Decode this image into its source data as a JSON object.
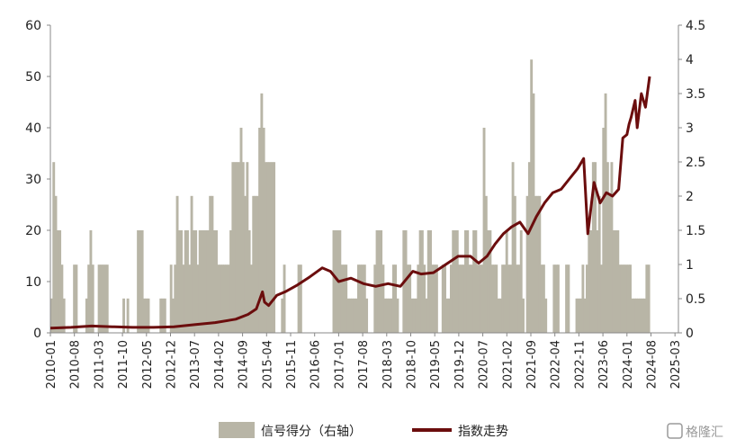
{
  "chart_data": {
    "type": "bar+line",
    "title": "",
    "left_axis": {
      "ylim": [
        0,
        60
      ],
      "ticks": [
        "0",
        "10",
        "20",
        "30",
        "40",
        "50",
        "60"
      ]
    },
    "right_axis": {
      "ylim": [
        0,
        4.5
      ],
      "ticks": [
        "0",
        "0.5",
        "1",
        "1.5",
        "2",
        "2.5",
        "3",
        "3.5",
        "4",
        "4.5"
      ]
    },
    "x_tick_labels": [
      "2010-01",
      "2010-08",
      "2011-03",
      "2011-10",
      "2012-05",
      "2012-12",
      "2013-07",
      "2014-02",
      "2014-09",
      "2015-04",
      "2015-11",
      "2016-06",
      "2017-01",
      "2017-08",
      "2018-03",
      "2018-10",
      "2019-05",
      "2019-12",
      "2020-07",
      "2021-02",
      "2021-09",
      "2022-04",
      "2022-11",
      "2023-06",
      "2024-01",
      "2024-08",
      "2025-03"
    ],
    "legend_position": "bottom",
    "series": [
      {
        "name": "信号得分（右轴）",
        "kind": "bar",
        "color": "#b8b5a6",
        "points": [
          [
            2010.0,
            6.7
          ],
          [
            2010.05,
            33.3
          ],
          [
            2010.1,
            26.7
          ],
          [
            2010.15,
            20
          ],
          [
            2010.2,
            20
          ],
          [
            2010.25,
            13.3
          ],
          [
            2010.3,
            6.7
          ],
          [
            2010.35,
            0
          ],
          [
            2010.55,
            13.3
          ],
          [
            2010.6,
            13.3
          ],
          [
            2010.7,
            0
          ],
          [
            2010.85,
            6.7
          ],
          [
            2010.9,
            13.3
          ],
          [
            2010.95,
            20
          ],
          [
            2011.0,
            13.3
          ],
          [
            2011.05,
            0
          ],
          [
            2011.15,
            13.3
          ],
          [
            2011.2,
            13.3
          ],
          [
            2011.25,
            13.3
          ],
          [
            2011.3,
            13.3
          ],
          [
            2011.35,
            13.3
          ],
          [
            2011.45,
            0
          ],
          [
            2011.6,
            0
          ],
          [
            2011.75,
            6.7
          ],
          [
            2011.85,
            6.7
          ],
          [
            2012.1,
            20
          ],
          [
            2012.15,
            20
          ],
          [
            2012.2,
            20
          ],
          [
            2012.25,
            6.7
          ],
          [
            2012.3,
            6.7
          ],
          [
            2012.35,
            6.7
          ],
          [
            2012.45,
            0
          ],
          [
            2012.65,
            6.7
          ],
          [
            2012.7,
            6.7
          ],
          [
            2012.75,
            6.7
          ],
          [
            2012.8,
            0
          ],
          [
            2012.9,
            13.3
          ],
          [
            2012.95,
            6.7
          ],
          [
            2013.0,
            13.3
          ],
          [
            2013.05,
            26.7
          ],
          [
            2013.1,
            20
          ],
          [
            2013.15,
            20
          ],
          [
            2013.2,
            13.3
          ],
          [
            2013.25,
            20
          ],
          [
            2013.3,
            20
          ],
          [
            2013.35,
            13.3
          ],
          [
            2013.4,
            26.7
          ],
          [
            2013.45,
            20
          ],
          [
            2013.5,
            20
          ],
          [
            2013.55,
            13.3
          ],
          [
            2013.6,
            20
          ],
          [
            2013.65,
            20
          ],
          [
            2013.7,
            20
          ],
          [
            2013.75,
            20
          ],
          [
            2013.8,
            20
          ],
          [
            2013.85,
            26.7
          ],
          [
            2013.9,
            26.7
          ],
          [
            2013.95,
            20
          ],
          [
            2014.0,
            20
          ],
          [
            2014.05,
            13.3
          ],
          [
            2014.1,
            13.3
          ],
          [
            2014.15,
            13.3
          ],
          [
            2014.2,
            13.3
          ],
          [
            2014.25,
            13.3
          ],
          [
            2014.3,
            13.3
          ],
          [
            2014.35,
            20
          ],
          [
            2014.4,
            33.3
          ],
          [
            2014.45,
            33.3
          ],
          [
            2014.5,
            33.3
          ],
          [
            2014.55,
            33.3
          ],
          [
            2014.6,
            40
          ],
          [
            2014.65,
            33.3
          ],
          [
            2014.7,
            26.7
          ],
          [
            2014.75,
            33.3
          ],
          [
            2014.8,
            20
          ],
          [
            2014.85,
            13.3
          ],
          [
            2014.9,
            26.7
          ],
          [
            2014.95,
            26.7
          ],
          [
            2015.0,
            26.7
          ],
          [
            2015.05,
            40
          ],
          [
            2015.1,
            46.7
          ],
          [
            2015.15,
            40
          ],
          [
            2015.2,
            33.3
          ],
          [
            2015.25,
            33.3
          ],
          [
            2015.3,
            33.3
          ],
          [
            2015.35,
            33.3
          ],
          [
            2015.4,
            33.3
          ],
          [
            2015.45,
            0
          ],
          [
            2015.6,
            6.7
          ],
          [
            2015.65,
            13.3
          ],
          [
            2015.7,
            0
          ],
          [
            2016.0,
            13.3
          ],
          [
            2016.05,
            13.3
          ],
          [
            2016.1,
            0
          ],
          [
            2016.85,
            20
          ],
          [
            2016.9,
            20
          ],
          [
            2016.95,
            20
          ],
          [
            2017.0,
            20
          ],
          [
            2017.05,
            13.3
          ],
          [
            2017.1,
            13.3
          ],
          [
            2017.15,
            13.3
          ],
          [
            2017.2,
            6.7
          ],
          [
            2017.25,
            6.7
          ],
          [
            2017.3,
            6.7
          ],
          [
            2017.35,
            6.7
          ],
          [
            2017.4,
            6.7
          ],
          [
            2017.45,
            13.3
          ],
          [
            2017.5,
            13.3
          ],
          [
            2017.55,
            13.3
          ],
          [
            2017.6,
            13.3
          ],
          [
            2017.65,
            6.7
          ],
          [
            2017.7,
            0
          ],
          [
            2017.85,
            13.3
          ],
          [
            2017.9,
            20
          ],
          [
            2017.95,
            20
          ],
          [
            2018.0,
            20
          ],
          [
            2018.05,
            13.3
          ],
          [
            2018.1,
            6.7
          ],
          [
            2018.15,
            6.7
          ],
          [
            2018.2,
            6.7
          ],
          [
            2018.25,
            6.7
          ],
          [
            2018.3,
            13.3
          ],
          [
            2018.35,
            13.3
          ],
          [
            2018.4,
            6.7
          ],
          [
            2018.45,
            0
          ],
          [
            2018.55,
            20
          ],
          [
            2018.6,
            20
          ],
          [
            2018.65,
            13.3
          ],
          [
            2018.7,
            13.3
          ],
          [
            2018.75,
            6.7
          ],
          [
            2018.8,
            6.7
          ],
          [
            2018.85,
            6.7
          ],
          [
            2018.9,
            13.3
          ],
          [
            2018.95,
            20
          ],
          [
            2019.0,
            20
          ],
          [
            2019.05,
            13.3
          ],
          [
            2019.1,
            6.7
          ],
          [
            2019.15,
            20
          ],
          [
            2019.2,
            20
          ],
          [
            2019.25,
            13.3
          ],
          [
            2019.3,
            13.3
          ],
          [
            2019.35,
            13.3
          ],
          [
            2019.4,
            0
          ],
          [
            2019.5,
            13.3
          ],
          [
            2019.55,
            13.3
          ],
          [
            2019.6,
            6.7
          ],
          [
            2019.65,
            6.7
          ],
          [
            2019.7,
            13.3
          ],
          [
            2019.75,
            20
          ],
          [
            2019.8,
            20
          ],
          [
            2019.85,
            20
          ],
          [
            2019.9,
            13.3
          ],
          [
            2019.95,
            13.3
          ],
          [
            2020.0,
            13.3
          ],
          [
            2020.05,
            20
          ],
          [
            2020.1,
            20
          ],
          [
            2020.15,
            13.3
          ],
          [
            2020.2,
            13.3
          ],
          [
            2020.25,
            20
          ],
          [
            2020.3,
            20
          ],
          [
            2020.35,
            13.3
          ],
          [
            2020.4,
            13.3
          ],
          [
            2020.45,
            13.3
          ],
          [
            2020.5,
            40
          ],
          [
            2020.55,
            26.7
          ],
          [
            2020.6,
            20
          ],
          [
            2020.65,
            20
          ],
          [
            2020.7,
            13.3
          ],
          [
            2020.75,
            13.3
          ],
          [
            2020.8,
            13.3
          ],
          [
            2020.85,
            6.7
          ],
          [
            2020.9,
            6.7
          ],
          [
            2020.95,
            13.3
          ],
          [
            2021.0,
            13.3
          ],
          [
            2021.05,
            20
          ],
          [
            2021.1,
            13.3
          ],
          [
            2021.15,
            13.3
          ],
          [
            2021.2,
            33.3
          ],
          [
            2021.25,
            26.7
          ],
          [
            2021.3,
            13.3
          ],
          [
            2021.35,
            13.3
          ],
          [
            2021.4,
            20
          ],
          [
            2021.45,
            6.7
          ],
          [
            2021.5,
            0
          ],
          [
            2021.55,
            26.7
          ],
          [
            2021.6,
            33.3
          ],
          [
            2021.65,
            53.3
          ],
          [
            2021.7,
            46.7
          ],
          [
            2021.75,
            26.7
          ],
          [
            2021.8,
            26.7
          ],
          [
            2021.85,
            26.7
          ],
          [
            2021.9,
            13.3
          ],
          [
            2021.95,
            13.3
          ],
          [
            2022.0,
            6.7
          ],
          [
            2022.05,
            0
          ],
          [
            2022.2,
            13.3
          ],
          [
            2022.25,
            13.3
          ],
          [
            2022.3,
            13.3
          ],
          [
            2022.35,
            0
          ],
          [
            2022.5,
            13.3
          ],
          [
            2022.55,
            13.3
          ],
          [
            2022.6,
            0
          ],
          [
            2022.75,
            6.7
          ],
          [
            2022.8,
            6.7
          ],
          [
            2022.85,
            6.7
          ],
          [
            2022.9,
            13.3
          ],
          [
            2022.95,
            6.7
          ],
          [
            2023.0,
            13.3
          ],
          [
            2023.05,
            20
          ],
          [
            2023.1,
            20
          ],
          [
            2023.15,
            33.3
          ],
          [
            2023.2,
            33.3
          ],
          [
            2023.25,
            20
          ],
          [
            2023.3,
            26.7
          ],
          [
            2023.35,
            13.3
          ],
          [
            2023.4,
            40
          ],
          [
            2023.45,
            46.7
          ],
          [
            2023.5,
            33.3
          ],
          [
            2023.55,
            26.7
          ],
          [
            2023.6,
            33.3
          ],
          [
            2023.65,
            20
          ],
          [
            2023.7,
            20
          ],
          [
            2023.75,
            20
          ],
          [
            2023.8,
            13.3
          ],
          [
            2023.85,
            13.3
          ],
          [
            2023.9,
            13.3
          ],
          [
            2023.95,
            13.3
          ],
          [
            2024.0,
            13.3
          ],
          [
            2024.05,
            13.3
          ],
          [
            2024.1,
            6.7
          ],
          [
            2024.15,
            6.7
          ],
          [
            2024.2,
            6.7
          ],
          [
            2024.25,
            6.7
          ],
          [
            2024.3,
            6.7
          ],
          [
            2024.35,
            6.7
          ],
          [
            2024.4,
            6.7
          ],
          [
            2024.45,
            13.3
          ],
          [
            2024.5,
            13.3
          ]
        ]
      },
      {
        "name": "指数走势",
        "kind": "line",
        "color": "#6b0d0d",
        "points": [
          [
            2010.0,
            0.07
          ],
          [
            2010.5,
            0.08
          ],
          [
            2011.0,
            0.1
          ],
          [
            2011.5,
            0.09
          ],
          [
            2012.0,
            0.08
          ],
          [
            2012.5,
            0.08
          ],
          [
            2013.0,
            0.09
          ],
          [
            2013.5,
            0.12
          ],
          [
            2014.0,
            0.15
          ],
          [
            2014.5,
            0.2
          ],
          [
            2014.8,
            0.27
          ],
          [
            2015.0,
            0.35
          ],
          [
            2015.15,
            0.6
          ],
          [
            2015.2,
            0.45
          ],
          [
            2015.3,
            0.4
          ],
          [
            2015.5,
            0.55
          ],
          [
            2015.7,
            0.6
          ],
          [
            2016.0,
            0.7
          ],
          [
            2016.3,
            0.82
          ],
          [
            2016.6,
            0.95
          ],
          [
            2016.8,
            0.9
          ],
          [
            2017.0,
            0.75
          ],
          [
            2017.3,
            0.8
          ],
          [
            2017.6,
            0.72
          ],
          [
            2017.9,
            0.68
          ],
          [
            2018.2,
            0.72
          ],
          [
            2018.5,
            0.68
          ],
          [
            2018.8,
            0.9
          ],
          [
            2019.0,
            0.86
          ],
          [
            2019.3,
            0.88
          ],
          [
            2019.6,
            1.0
          ],
          [
            2019.9,
            1.12
          ],
          [
            2020.2,
            1.12
          ],
          [
            2020.4,
            1.02
          ],
          [
            2020.6,
            1.12
          ],
          [
            2020.8,
            1.3
          ],
          [
            2021.0,
            1.45
          ],
          [
            2021.2,
            1.55
          ],
          [
            2021.4,
            1.62
          ],
          [
            2021.6,
            1.45
          ],
          [
            2021.8,
            1.7
          ],
          [
            2022.0,
            1.9
          ],
          [
            2022.2,
            2.05
          ],
          [
            2022.4,
            2.1
          ],
          [
            2022.6,
            2.25
          ],
          [
            2022.8,
            2.4
          ],
          [
            2022.95,
            2.55
          ],
          [
            2023.05,
            1.45
          ],
          [
            2023.2,
            2.2
          ],
          [
            2023.35,
            1.9
          ],
          [
            2023.5,
            2.05
          ],
          [
            2023.65,
            2.0
          ],
          [
            2023.8,
            2.1
          ],
          [
            2023.9,
            2.85
          ],
          [
            2024.0,
            2.9
          ],
          [
            2024.05,
            3.05
          ],
          [
            2024.1,
            3.15
          ],
          [
            2024.2,
            3.4
          ],
          [
            2024.25,
            3.0
          ],
          [
            2024.35,
            3.5
          ],
          [
            2024.45,
            3.3
          ],
          [
            2024.55,
            3.75
          ]
        ]
      }
    ]
  },
  "legend": {
    "bar_label": "信号得分（右轴）",
    "line_label": "指数走势"
  },
  "watermark": "格隆汇"
}
